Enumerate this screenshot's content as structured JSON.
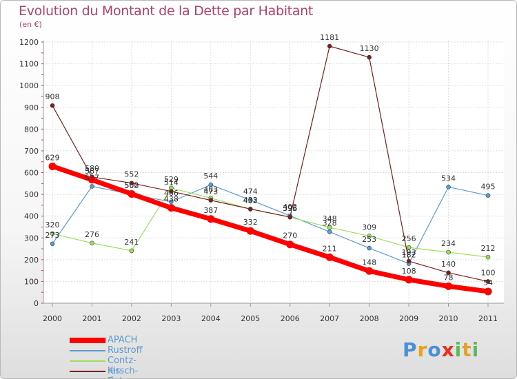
{
  "chart_data": {
    "type": "line",
    "title": "Evolution du Montant de la Dette par Habitant",
    "subtitle": "(en €)",
    "x": [
      "2000",
      "2001",
      "2002",
      "2003",
      "2004",
      "2005",
      "2006",
      "2007",
      "2008",
      "2009",
      "2010",
      "2011"
    ],
    "ylim": [
      0,
      1200
    ],
    "yticks": [
      0,
      100,
      200,
      300,
      400,
      500,
      600,
      700,
      800,
      900,
      1000,
      1100,
      1200
    ],
    "grid": true,
    "legend_position": "bottom-left",
    "series": [
      {
        "name": "APACH",
        "color": "#ff0000",
        "values": [
          629,
          567,
          502,
          438,
          387,
          332,
          270,
          211,
          148,
          108,
          78,
          54
        ]
      },
      {
        "name": "Rustroff",
        "color": "#5b9bd5",
        "values": [
          273,
          537,
          500,
          466,
          544,
          474,
          402,
          328,
          253,
          182,
          534,
          495
        ]
      },
      {
        "name": "Contz-les-Bains",
        "color": "#99e05a",
        "values": [
          320,
          276,
          241,
          529,
          483,
          432,
          395,
          348,
          309,
          256,
          234,
          212
        ]
      },
      {
        "name": "Kirsch-lès-Sierck",
        "color": "#7b1e1e",
        "values": [
          908,
          580,
          552,
          514,
          473,
          433,
          396,
          1181,
          1130,
          193,
          140,
          100
        ]
      }
    ]
  },
  "logo": {
    "text": "Proxiti",
    "letters": [
      "P",
      "r",
      "o",
      "x",
      "i",
      "t",
      "i"
    ],
    "colors": [
      "#4a90d9",
      "#e8a020",
      "#4a90d9",
      "#e83020",
      "#5cb85c",
      "#e8a020",
      "#5cb85c"
    ]
  }
}
